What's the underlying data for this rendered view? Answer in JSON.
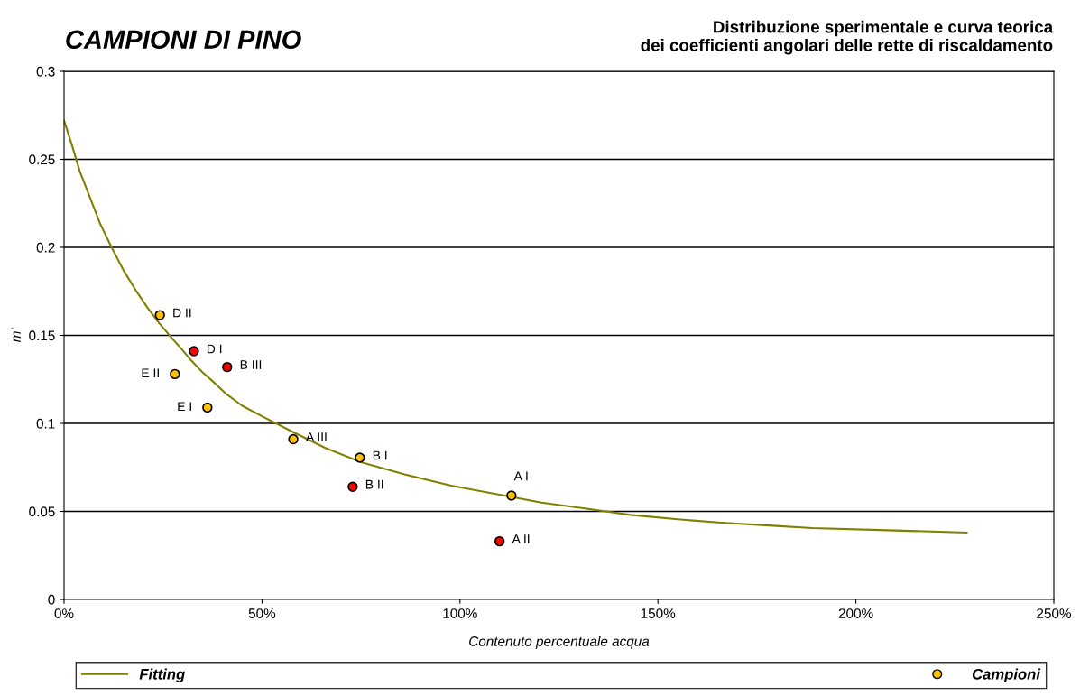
{
  "chart_data": {
    "type": "scatter",
    "title": "CAMPIONI DI PINO",
    "subtitle": "Distribuzione sperimentale e curva teorica\ndei coefficienti angolari delle rette di riscaldamento",
    "xlabel": "Contenuto percentuale acqua",
    "ylabel": "m'",
    "xlim": [
      0,
      250
    ],
    "xticks": [
      {
        "value": 0,
        "label": "0%"
      },
      {
        "value": 50,
        "label": "50%"
      },
      {
        "value": 100,
        "label": "100%"
      },
      {
        "value": 150,
        "label": "150%"
      },
      {
        "value": 200,
        "label": "200%"
      },
      {
        "value": 250,
        "label": "250%"
      }
    ],
    "ylim": [
      0,
      0.3
    ],
    "yticks": [
      0,
      0.05,
      0.1,
      0.15,
      0.2,
      0.25,
      0.3
    ],
    "grid": "y",
    "legend": "bottom",
    "series": [
      {
        "name": "Fitting",
        "type": "line",
        "color": "#808000",
        "marker": "none",
        "line_style": "solid",
        "x": [
          0,
          2,
          4,
          6.6,
          9,
          12,
          15,
          18,
          21,
          24,
          27,
          29.4,
          32,
          35,
          38,
          40.8,
          45,
          50,
          57.9,
          66,
          75,
          86,
          97.8,
          110,
          120.6,
          132,
          143,
          155,
          166,
          178,
          189,
          208,
          228
        ],
        "values": [
          0.272,
          0.258,
          0.243,
          0.228,
          0.214,
          0.2,
          0.187,
          0.176,
          0.166,
          0.157,
          0.149,
          0.143,
          0.136,
          0.129,
          0.123,
          0.117,
          0.11,
          0.104,
          0.095,
          0.086,
          0.078,
          0.071,
          0.0646,
          0.0595,
          0.055,
          0.0515,
          0.048,
          0.0455,
          0.0436,
          0.042,
          0.0405,
          0.0393,
          0.038
        ]
      },
      {
        "name": "Campioni",
        "color": "#ffc000",
        "marker": "circle",
        "x": [
          24.2,
          32.8,
          28.0,
          41.2,
          36.2,
          57.9,
          74.7,
          72.9,
          113,
          110
        ],
        "values": [
          0.1615,
          0.141,
          0.128,
          0.132,
          0.109,
          0.091,
          0.0805,
          0.064,
          0.059,
          0.033
        ],
        "colors": [
          "#ffc000",
          "#ff0000",
          "#ffc000",
          "#ff0000",
          "#ffc000",
          "#ffc000",
          "#ffc000",
          "#ff0000",
          "#ffc000",
          "#ff0000"
        ]
      }
    ],
    "annotations": [
      {
        "text": "D II",
        "x": 24.2,
        "y": 0.1615
      },
      {
        "text": "D I",
        "x": 32.8,
        "y": 0.141
      },
      {
        "text": "E II",
        "x": 28.0,
        "y": 0.128
      },
      {
        "text": "B III",
        "x": 41.2,
        "y": 0.132
      },
      {
        "text": "E I",
        "x": 36.2,
        "y": 0.109
      },
      {
        "text": "A III",
        "x": 57.9,
        "y": 0.091
      },
      {
        "text": "B I",
        "x": 74.7,
        "y": 0.0805
      },
      {
        "text": "B II",
        "x": 72.9,
        "y": 0.064
      },
      {
        "text": "A I",
        "x": 113,
        "y": 0.059
      },
      {
        "text": "A II",
        "x": 110,
        "y": 0.033
      }
    ]
  }
}
